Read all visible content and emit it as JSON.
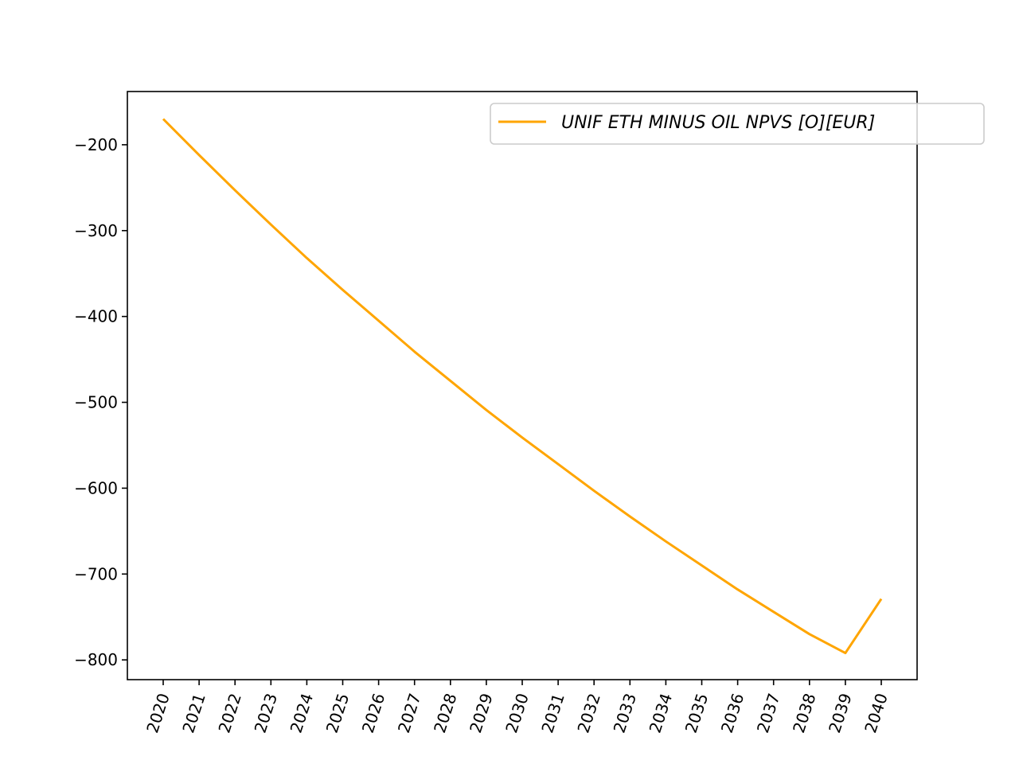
{
  "chart_data": {
    "type": "line",
    "title": "",
    "xlabel": "",
    "ylabel": "",
    "x": [
      "2020",
      "2021",
      "2022",
      "2023",
      "2024",
      "2025",
      "2026",
      "2027",
      "2028",
      "2029",
      "2030",
      "2031",
      "2032",
      "2033",
      "2034",
      "2035",
      "2036",
      "2037",
      "2038",
      "2039",
      "2040"
    ],
    "series": [
      {
        "name": "UNIF ETH MINUS OIL NPVS [O][EUR]",
        "color": "#ffa500",
        "values": [
          -170,
          -212,
          -253,
          -293,
          -332,
          -369,
          -405,
          -441,
          -475,
          -509,
          -541,
          -572,
          -603,
          -633,
          -662,
          -690,
          -718,
          -744,
          -770,
          -792,
          -729
        ]
      }
    ],
    "yticks": [
      -200,
      -300,
      -400,
      -500,
      -600,
      -700,
      -800
    ],
    "ylim": [
      -823,
      -138
    ],
    "grid": false,
    "legend_position": "upper right"
  }
}
